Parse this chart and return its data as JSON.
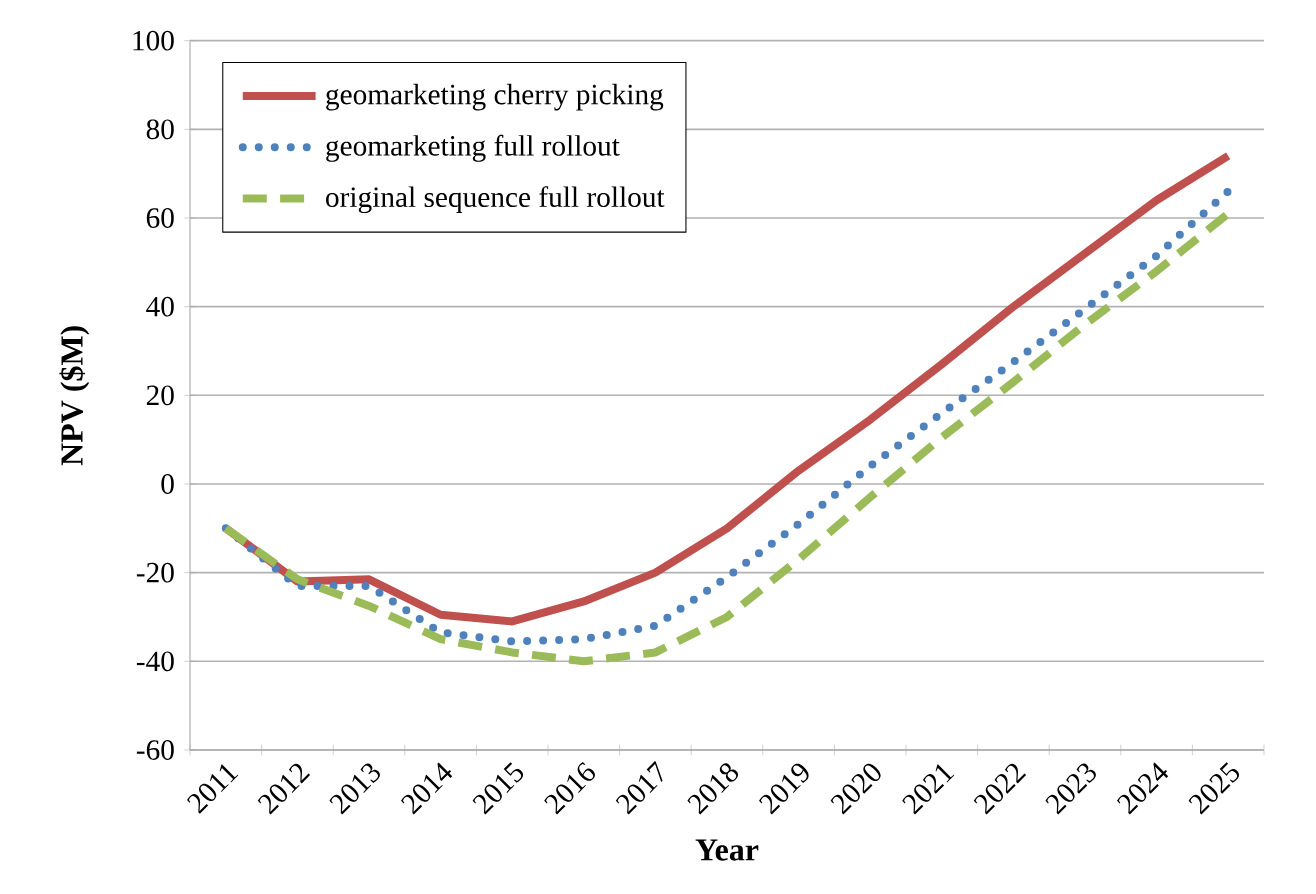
{
  "chart_data": {
    "type": "line",
    "xlabel": "Year",
    "ylabel": "NPV ($M)",
    "categories": [
      "2011",
      "2012",
      "2013",
      "2014",
      "2015",
      "2016",
      "2017",
      "2018",
      "2019",
      "2020",
      "2021",
      "2022",
      "2023",
      "2024",
      "2025"
    ],
    "series": [
      {
        "name": "geomarketing cherry picking",
        "color": "#c0504d",
        "line_style": "solid",
        "values": [
          -10,
          -22,
          -21.5,
          -29.5,
          -31,
          -26.5,
          -20,
          -10,
          3,
          14.5,
          27,
          40,
          52,
          64,
          74
        ]
      },
      {
        "name": "geomarketing full rollout",
        "color": "#4f81bd",
        "line_style": "dotted",
        "values": [
          -10,
          -23,
          -23,
          -33.5,
          -35.5,
          -35,
          -32,
          -21,
          -9,
          4,
          16,
          27.5,
          39.5,
          51.5,
          66
        ]
      },
      {
        "name": "original sequence full rollout",
        "color": "#9bbb59",
        "line_style": "dashed",
        "values": [
          -10,
          -21.5,
          -27.5,
          -35,
          -38,
          -40,
          -38,
          -30,
          -17,
          -3,
          10.5,
          23,
          36,
          48,
          61
        ]
      }
    ],
    "ylim": [
      -60,
      100
    ],
    "yticks": [
      -60,
      -40,
      -20,
      0,
      20,
      40,
      60,
      80,
      100
    ],
    "grid": "y",
    "legend": "top left",
    "marker": "none"
  }
}
